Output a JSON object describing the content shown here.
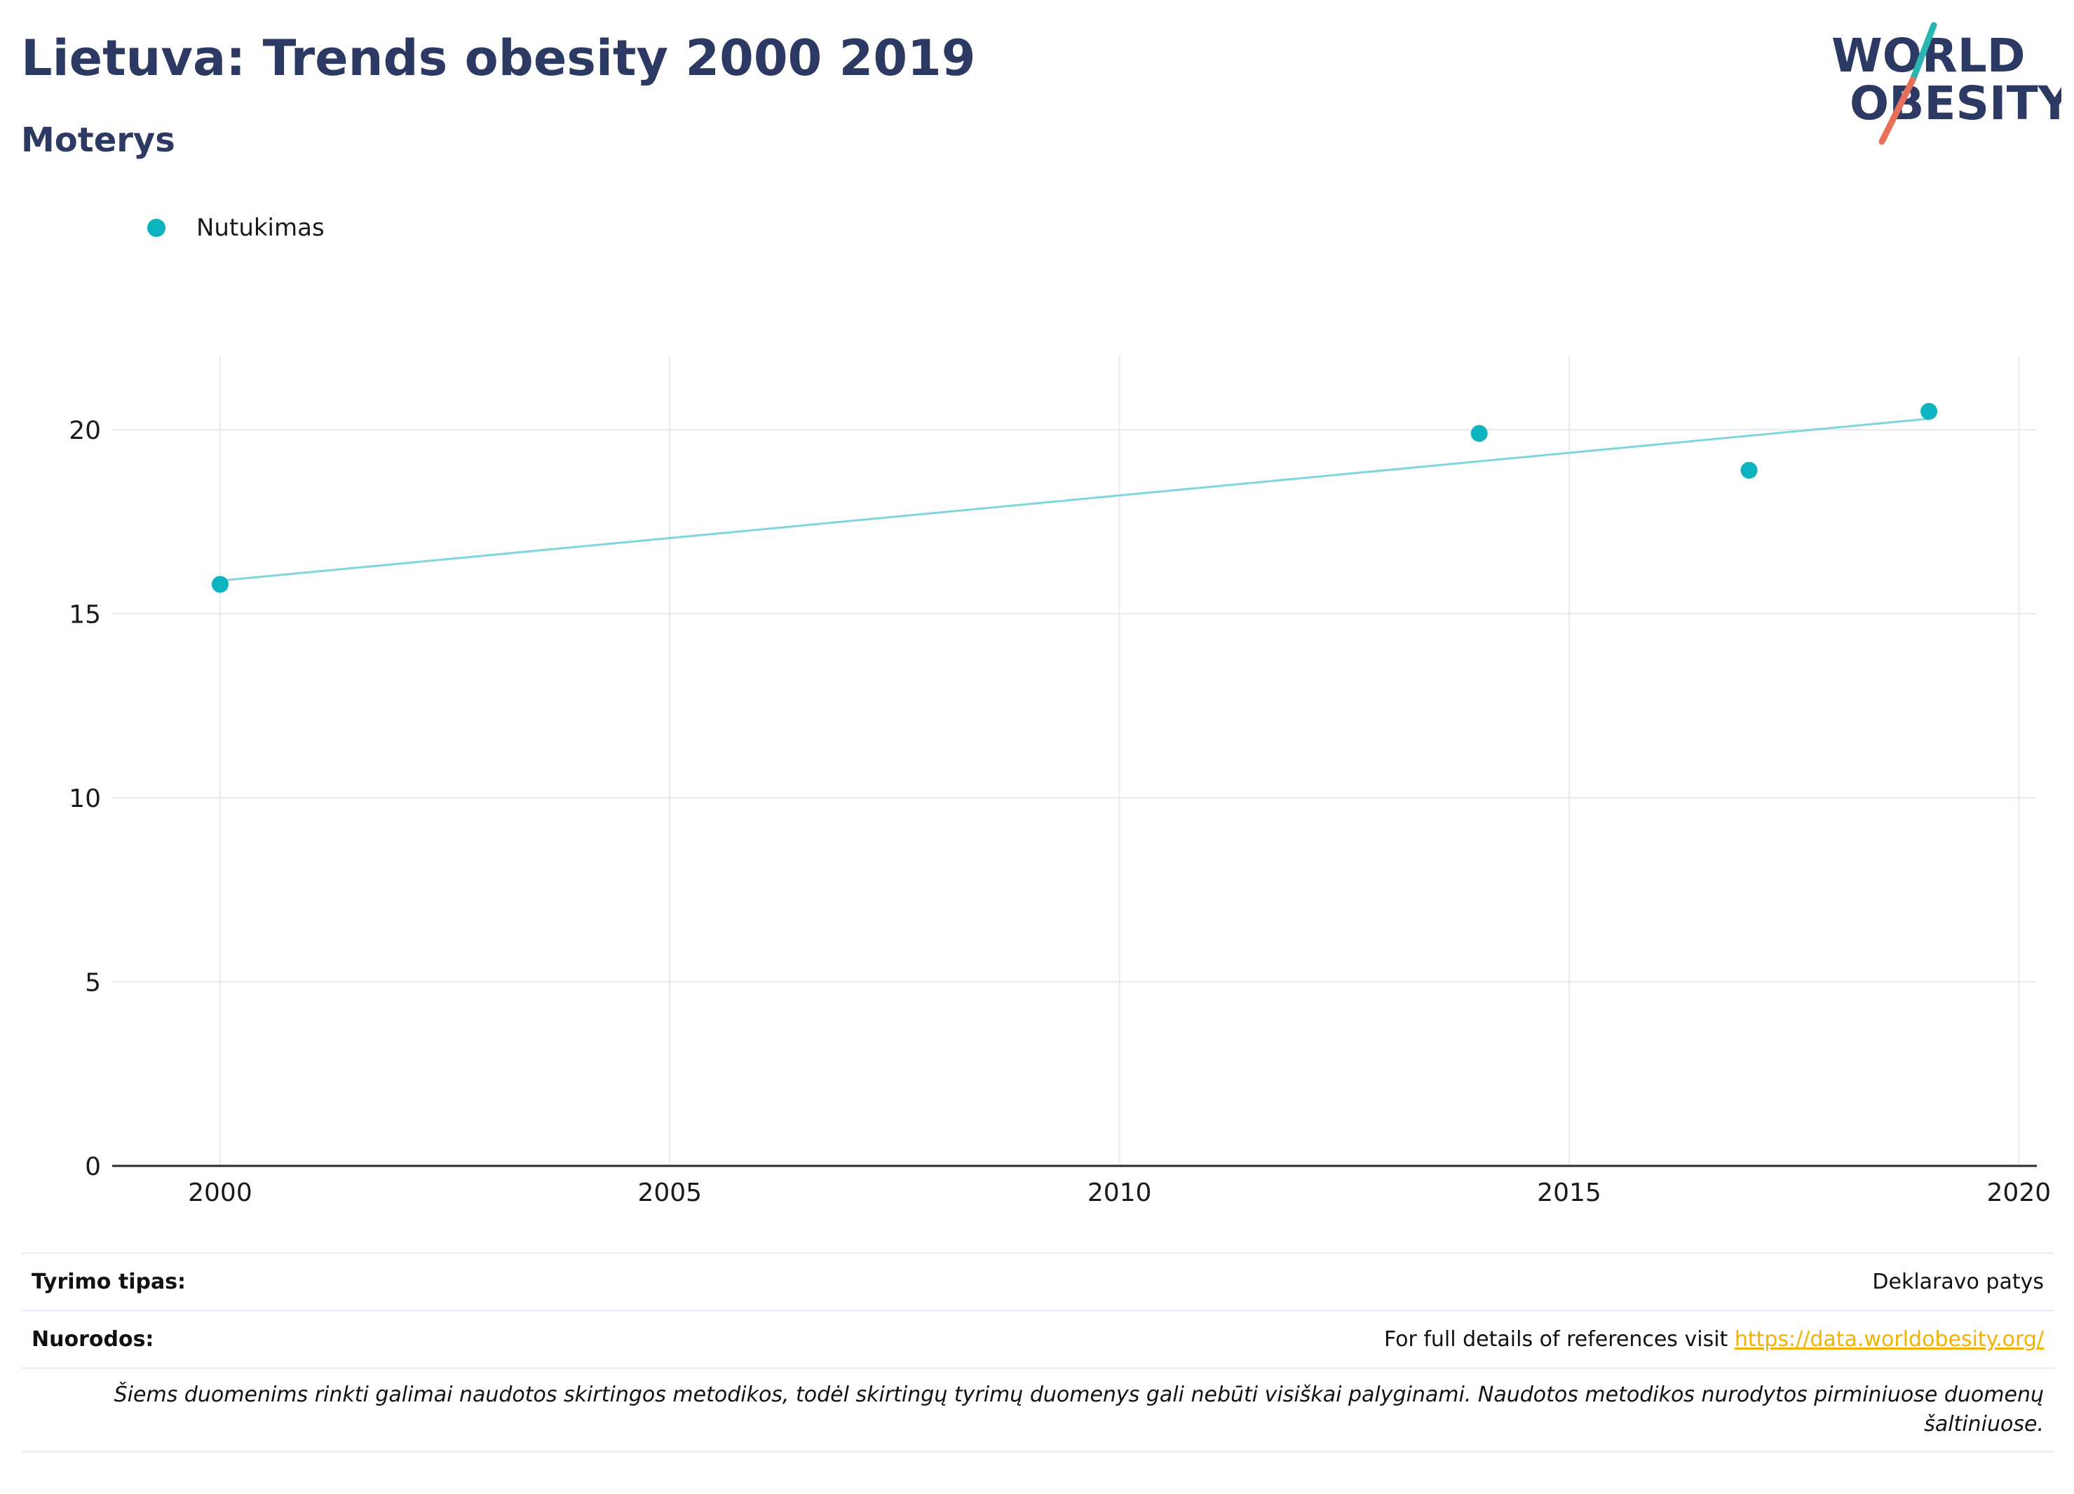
{
  "header": {
    "title": "Lietuva: Trends obesity 2000 2019",
    "subtitle": "Moterys"
  },
  "logo": {
    "line1": "WORLD",
    "line2": "OBESITY",
    "accent_teal": "#2ab5b0",
    "accent_red": "#e8705a"
  },
  "legend": {
    "label": "Nutukimas",
    "color": "#0db3be"
  },
  "chart_data": {
    "type": "scatter",
    "title": "",
    "xlabel": "",
    "ylabel": "",
    "xlim": [
      1998.8,
      2020.2
    ],
    "ylim": [
      0,
      22
    ],
    "x_ticks": [
      2000,
      2005,
      2010,
      2015,
      2020
    ],
    "y_ticks": [
      0,
      5,
      10,
      15,
      20
    ],
    "grid": true,
    "series": [
      {
        "name": "Nutukimas",
        "color": "#0db3be",
        "points": [
          {
            "x": 2000,
            "y": 15.8
          },
          {
            "x": 2014,
            "y": 19.9
          },
          {
            "x": 2017,
            "y": 18.9
          },
          {
            "x": 2019,
            "y": 20.5
          }
        ],
        "trendline": {
          "color": "#7fd6db",
          "from": {
            "x": 2000,
            "y": 15.9
          },
          "to": {
            "x": 2019,
            "y": 20.3
          }
        }
      }
    ]
  },
  "footer": {
    "survey_type_label": "Tyrimo tipas:",
    "survey_type_value": "Deklaravo patys",
    "references_label": "Nuorodos:",
    "references_text": "For full details of references visit",
    "references_link": "https://data.worldobesity.org/",
    "note": "Šiems duomenims rinkti galimai naudotos skirtingos metodikos, todėl skirtingų tyrimų duomenys gali nebūti visiškai palyginami. Naudotos metodikos nurodytos pirminiuose duomenų šaltiniuose."
  }
}
